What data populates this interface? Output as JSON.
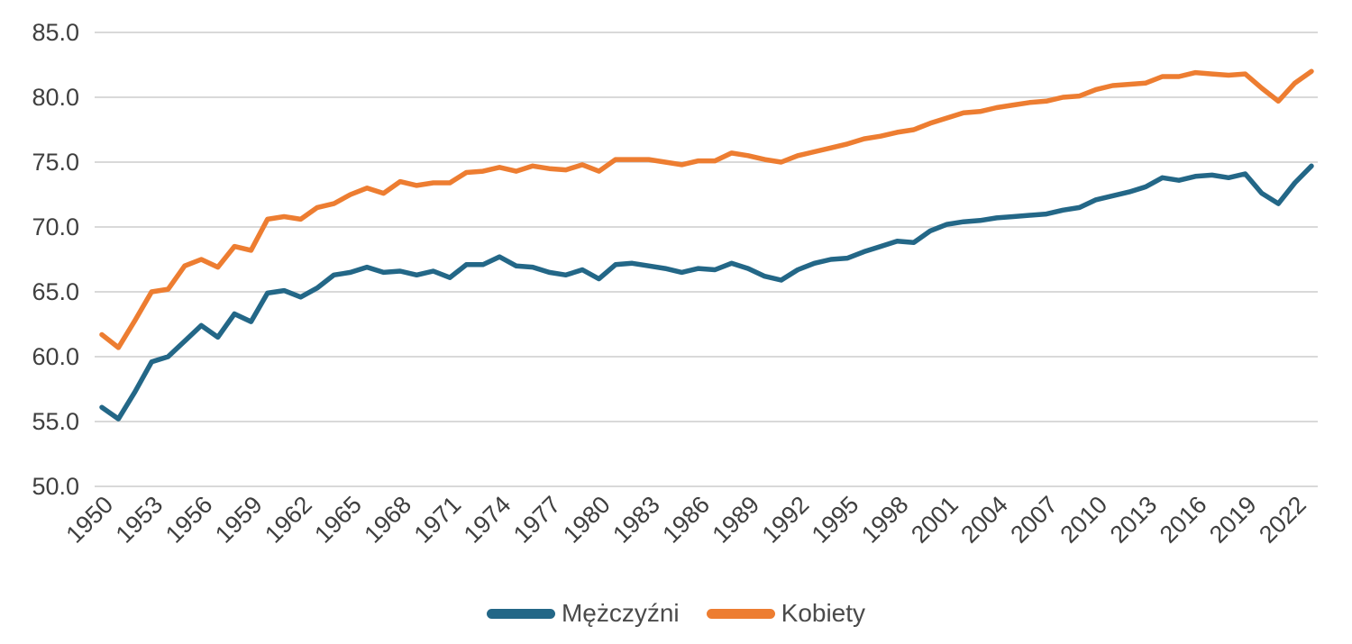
{
  "chart_data": {
    "type": "line",
    "title": "",
    "xlabel": "",
    "ylabel": "",
    "grid": "horizontal",
    "legend_position": "bottom-center",
    "ylim": [
      50,
      85
    ],
    "ytick_step": 5,
    "ytick_labels": [
      "85.0",
      "80.0",
      "75.0",
      "70.0",
      "65.0",
      "60.0",
      "55.0",
      "50.0"
    ],
    "xtick_labels": [
      "1950",
      "1953",
      "1956",
      "1959",
      "1962",
      "1965",
      "1968",
      "1971",
      "1974",
      "1977",
      "1980",
      "1983",
      "1986",
      "1989",
      "1992",
      "1995",
      "1998",
      "2001",
      "2004",
      "2007",
      "2010",
      "2013",
      "2016",
      "2019",
      "2022"
    ],
    "x": [
      1950,
      1951,
      1952,
      1953,
      1954,
      1955,
      1956,
      1957,
      1958,
      1959,
      1960,
      1961,
      1962,
      1963,
      1964,
      1965,
      1966,
      1967,
      1968,
      1969,
      1970,
      1971,
      1972,
      1973,
      1974,
      1975,
      1976,
      1977,
      1978,
      1979,
      1980,
      1981,
      1982,
      1983,
      1984,
      1985,
      1986,
      1987,
      1988,
      1989,
      1990,
      1991,
      1992,
      1993,
      1994,
      1995,
      1996,
      1997,
      1998,
      1999,
      2000,
      2001,
      2002,
      2003,
      2004,
      2005,
      2006,
      2007,
      2008,
      2009,
      2010,
      2011,
      2012,
      2013,
      2014,
      2015,
      2016,
      2017,
      2018,
      2019,
      2020,
      2021,
      2022,
      2023
    ],
    "series": [
      {
        "key": "men",
        "name": "Mężczyźni",
        "color": "#236787",
        "values": [
          56.1,
          55.2,
          57.3,
          59.6,
          60.0,
          61.2,
          62.4,
          61.5,
          63.3,
          62.7,
          64.9,
          65.1,
          64.6,
          65.3,
          66.3,
          66.5,
          66.9,
          66.5,
          66.6,
          66.3,
          66.6,
          66.1,
          67.1,
          67.1,
          67.7,
          67.0,
          66.9,
          66.5,
          66.3,
          66.7,
          66.0,
          67.1,
          67.2,
          67.0,
          66.8,
          66.5,
          66.8,
          66.7,
          67.2,
          66.8,
          66.2,
          65.9,
          66.7,
          67.2,
          67.5,
          67.6,
          68.1,
          68.5,
          68.9,
          68.8,
          69.7,
          70.2,
          70.4,
          70.5,
          70.7,
          70.8,
          70.9,
          71.0,
          71.3,
          71.5,
          72.1,
          72.4,
          72.7,
          73.1,
          73.8,
          73.6,
          73.9,
          74.0,
          73.8,
          74.1,
          72.6,
          71.8,
          73.4,
          74.7
        ]
      },
      {
        "key": "women",
        "name": "Kobiety",
        "color": "#ED7D31",
        "values": [
          61.7,
          60.7,
          62.8,
          65.0,
          65.2,
          67.0,
          67.5,
          66.9,
          68.5,
          68.2,
          70.6,
          70.8,
          70.6,
          71.5,
          71.8,
          72.5,
          73.0,
          72.6,
          73.5,
          73.2,
          73.4,
          73.4,
          74.2,
          74.3,
          74.6,
          74.3,
          74.7,
          74.5,
          74.4,
          74.8,
          74.3,
          75.2,
          75.2,
          75.2,
          75.0,
          74.8,
          75.1,
          75.1,
          75.7,
          75.5,
          75.2,
          75.0,
          75.5,
          75.8,
          76.1,
          76.4,
          76.8,
          77.0,
          77.3,
          77.5,
          78.0,
          78.4,
          78.8,
          78.9,
          79.2,
          79.4,
          79.6,
          79.7,
          80.0,
          80.1,
          80.6,
          80.9,
          81.0,
          81.1,
          81.6,
          81.6,
          81.9,
          81.8,
          81.7,
          81.8,
          80.7,
          79.7,
          81.1,
          82.0
        ]
      }
    ],
    "style": {
      "gridline_color": "#D9D9D9",
      "axis_label_color": "#3F3F3F",
      "legend_label_color": "#4A4A4A",
      "background_color": "#FFFFFF"
    }
  },
  "legend": {
    "items": [
      {
        "label": "Mężczyźni",
        "color": "#236787"
      },
      {
        "label": "Kobiety",
        "color": "#ED7D31"
      }
    ]
  }
}
